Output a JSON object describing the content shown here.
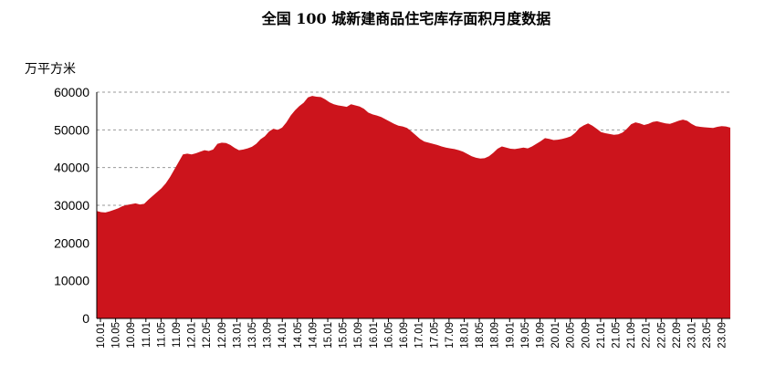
{
  "chart_data": {
    "type": "area",
    "title": "全国 100 城新建商品住宅库存面积月度数据",
    "ylabel": "万平方米",
    "ylim": [
      0,
      60000
    ],
    "yticks": [
      "0",
      "10000",
      "20000",
      "30000",
      "40000",
      "50000",
      "60000"
    ],
    "grid": true,
    "color": "#CC141C",
    "x_labels": [
      "10.01",
      "10.05",
      "10.09",
      "11.01",
      "11.05",
      "11.09",
      "12.01",
      "12.05",
      "12.09",
      "13.01",
      "13.05",
      "13.09",
      "14.01",
      "14.05",
      "14.09",
      "15.01",
      "15.05",
      "15.09",
      "16.01",
      "16.05",
      "16.09",
      "17.01",
      "17.05",
      "17.09",
      "18.01",
      "18.05",
      "18.09",
      "19.01",
      "19.05",
      "19.09",
      "20.01",
      "20.05",
      "20.09",
      "21.01",
      "21.05",
      "21.09",
      "22.01",
      "22.05",
      "22.09",
      "23.01",
      "23.05",
      "23.09"
    ],
    "series": [
      {
        "values": [
          28500,
          28200,
          28100,
          28400,
          28800,
          29200,
          29800,
          30100,
          30300,
          30500,
          30200,
          30400,
          31500,
          32500,
          33500,
          34500,
          35800,
          37500,
          39500,
          41500,
          43500,
          43700,
          43500,
          43800,
          44200,
          44600,
          44400,
          44800,
          46300,
          46600,
          46500,
          46000,
          45200,
          44600,
          44800,
          45100,
          45500,
          46300,
          47500,
          48300,
          49600,
          50300,
          50000,
          50600,
          52000,
          53800,
          55200,
          56300,
          57200,
          58600,
          59000,
          58800,
          58700,
          58100,
          57300,
          56800,
          56500,
          56300,
          56100,
          56800,
          56500,
          56200,
          55600,
          54600,
          54100,
          53800,
          53400,
          52800,
          52200,
          51600,
          51100,
          50900,
          50500,
          49600,
          48600,
          47600,
          46900,
          46600,
          46300,
          46000,
          45600,
          45300,
          45100,
          44900,
          44600,
          44200,
          43600,
          43000,
          42600,
          42400,
          42500,
          43000,
          43900,
          45000,
          45600,
          45300,
          45000,
          44900,
          45100,
          45300,
          45100,
          45600,
          46300,
          47000,
          47800,
          47600,
          47300,
          47400,
          47600,
          47900,
          48300,
          49200,
          50500,
          51200,
          51700,
          51100,
          50300,
          49400,
          49100,
          48900,
          48700,
          48800,
          49300,
          50300,
          51500,
          52000,
          51700,
          51300,
          51600,
          52100,
          52300,
          52000,
          51700,
          51600,
          52000,
          52400,
          52700,
          52400,
          51600,
          51000,
          50800,
          50700,
          50600,
          50500,
          50800,
          51000,
          50900,
          50600
        ]
      }
    ]
  }
}
